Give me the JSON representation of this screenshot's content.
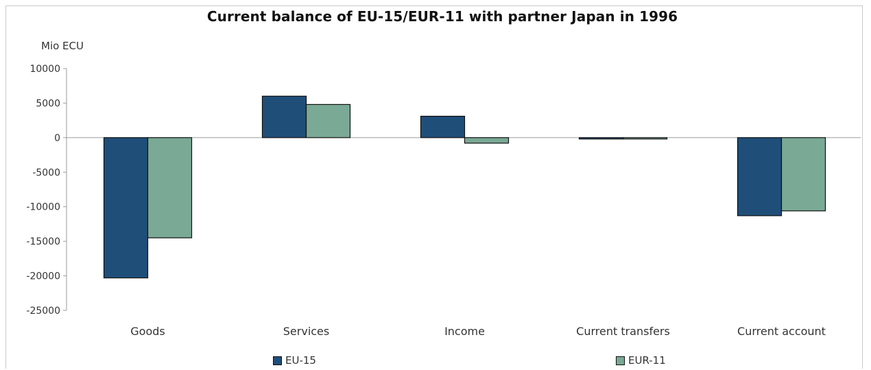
{
  "chart_data": {
    "type": "bar",
    "title": "Current balance of EU-15/EUR-11 with partner Japan in 1996",
    "ylabel": "Mio ECU",
    "xlabel": "",
    "categories": [
      "Goods",
      "Services",
      "Income",
      "Current transfers",
      "Current account"
    ],
    "series": [
      {
        "name": "EU-15",
        "color": "#1f4e79",
        "values": [
          -20300,
          6000,
          3100,
          -200,
          -11300
        ]
      },
      {
        "name": "EUR-11",
        "color": "#7aa995",
        "values": [
          -14500,
          4800,
          -800,
          -100,
          -10600
        ]
      }
    ],
    "ylim": [
      -25000,
      10000
    ],
    "yticks": [
      10000,
      5000,
      0,
      -5000,
      -10000,
      -15000,
      -20000,
      -25000
    ],
    "ytick_labels": [
      "10000",
      "5000",
      "0",
      "-5000",
      "-10000",
      "-15000",
      "-20000",
      "-25000"
    ],
    "grid": false,
    "legend_position": "bottom"
  }
}
